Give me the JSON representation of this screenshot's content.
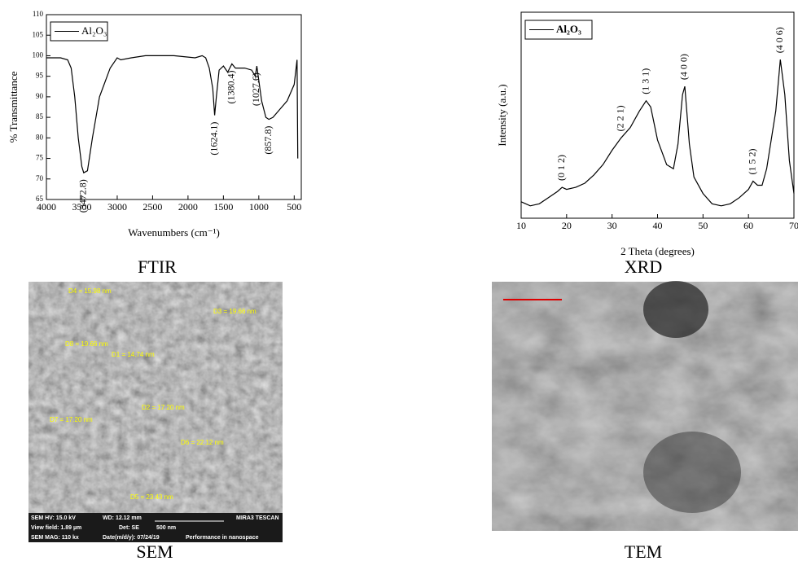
{
  "chart_data": [
    {
      "type": "line",
      "caption": "FTIR",
      "x_label": "Wavenumbers (cm⁻¹)",
      "y_label": "% Transmittance",
      "xlim": [
        4000,
        400
      ],
      "ylim": [
        65,
        110
      ],
      "xticks": [
        4000,
        3500,
        3000,
        2500,
        2000,
        1500,
        1000,
        500
      ],
      "yticks": [
        65,
        70,
        75,
        80,
        85,
        90,
        95,
        100,
        105,
        110
      ],
      "series": [
        {
          "name": "Al₂O₃",
          "color": "#000000",
          "x": [
            4000,
            3800,
            3700,
            3650,
            3600,
            3550,
            3500,
            3472.8,
            3420,
            3350,
            3250,
            3100,
            3000,
            2950,
            2800,
            2600,
            2200,
            1900,
            1800,
            1750,
            1700,
            1650,
            1624.1,
            1600,
            1560,
            1500,
            1440,
            1380.4,
            1330,
            1200,
            1100,
            1050,
            1027.6,
            1000,
            960,
            900,
            857.8,
            800,
            700,
            600,
            500,
            460,
            450
          ],
          "values": [
            99.5,
            99.5,
            99,
            97,
            90,
            80,
            73,
            71.5,
            72,
            80,
            90,
            97,
            99.5,
            99,
            99.5,
            100,
            100,
            99.5,
            100,
            99.5,
            97,
            92,
            85.5,
            90,
            96.5,
            97.5,
            96,
            98,
            97,
            97,
            96.5,
            95,
            97.5,
            94,
            89,
            85,
            84.5,
            85,
            87,
            89,
            93,
            99,
            75
          ]
        }
      ],
      "annotations": [
        {
          "label": "(3472.8)",
          "x": 3472.8
        },
        {
          "label": "(1624.1)",
          "x": 1624.1
        },
        {
          "label": "(1380.4)",
          "x": 1380.4
        },
        {
          "label": "(1027.6)",
          "x": 1027.6
        },
        {
          "label": "(857.8)",
          "x": 857.8
        }
      ]
    },
    {
      "type": "line",
      "caption": "XRD",
      "x_label": "2 Theta (degrees)",
      "y_label": "Intensity (a.u.)",
      "xlim": [
        10,
        70
      ],
      "ylim": [
        0,
        100
      ],
      "xticks": [
        10,
        20,
        30,
        40,
        50,
        60,
        70
      ],
      "series": [
        {
          "name": "Al₂O₃",
          "color": "#000000",
          "x": [
            10,
            12,
            14,
            16,
            18,
            19,
            20,
            22,
            24,
            26,
            28,
            30,
            32,
            34,
            36,
            37.5,
            38.5,
            40,
            42,
            43.5,
            44.5,
            45.5,
            46,
            47,
            48,
            50,
            52,
            54,
            56,
            58,
            60,
            61,
            62,
            63,
            64,
            66,
            67,
            68,
            69,
            70
          ],
          "values": [
            8,
            6,
            7,
            10,
            13,
            15,
            14,
            15,
            17,
            21,
            26,
            33,
            39,
            44,
            52,
            57,
            54,
            38,
            26,
            24,
            36,
            60,
            64,
            36,
            20,
            12,
            7,
            6,
            7,
            10,
            14,
            18,
            16,
            16,
            24,
            52,
            77,
            60,
            28,
            12
          ]
        }
      ],
      "annotations": [
        {
          "label": "(0 1 2)",
          "x": 19
        },
        {
          "label": "(2 2 1)",
          "x": 32
        },
        {
          "label": "(1 3 1)",
          "x": 37.5
        },
        {
          "label": "(4 0 0)",
          "x": 46
        },
        {
          "label": "(1 5 2)",
          "x": 61
        },
        {
          "label": "(4 0 6)",
          "x": 67
        }
      ]
    }
  ],
  "sem": {
    "caption": "SEM",
    "labels": [
      "D4 = 15.98 nm",
      "D3 = 19.66 nm",
      "D8 = 19.66 nm",
      "D1 = 14.74 nm",
      "D2 = 17.20 nm",
      "D7 = 17.20 nm",
      "D6 = 22.12 nm",
      "D5 = 23.43 nm"
    ],
    "info": [
      "SEM HV: 15.0 kV",
      "WD: 12.12 mm",
      "MIRA3 TESCAN",
      "View field: 1.89 µm",
      "Det: SE",
      "500 nm",
      "SEM MAG: 110 kx",
      "Date(m/d/y): 07/24/19",
      "Performance in nanospace"
    ]
  },
  "tem": {
    "caption": "TEM"
  }
}
